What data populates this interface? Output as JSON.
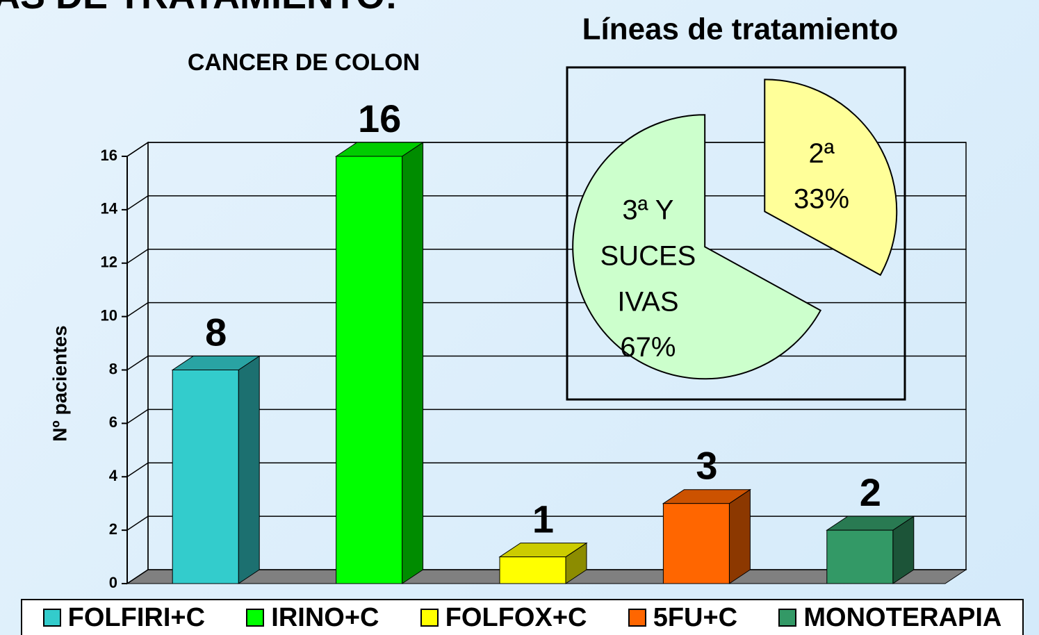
{
  "slide_title": "AS DE TRATAMIENTO:",
  "chart_data": [
    {
      "type": "bar3d",
      "title": "CANCER DE COLON",
      "y_label": "Nº pacientes",
      "categories": [
        "FOLFIRI+C",
        "IRINO+C",
        "FOLFOX+C",
        "5FU+C",
        "MONOTERAPIA"
      ],
      "values": [
        8,
        16,
        1,
        3,
        2
      ],
      "colors": [
        "#33cccc",
        "#00ff00",
        "#ffff00",
        "#ff6600",
        "#339966"
      ],
      "ylim": [
        0,
        16
      ],
      "yticks": [
        0,
        2,
        4,
        6,
        8,
        10,
        12,
        14,
        16
      ],
      "grid": true,
      "legend": "bottom"
    },
    {
      "type": "pie",
      "title": "Líneas de tratamiento",
      "categories": [
        "2ª",
        "3ª Y SUCESIVAS"
      ],
      "values": [
        33,
        67
      ],
      "value_labels": [
        "33%",
        "67%"
      ],
      "colors": [
        "#ffff99",
        "#ccffcc"
      ]
    }
  ]
}
